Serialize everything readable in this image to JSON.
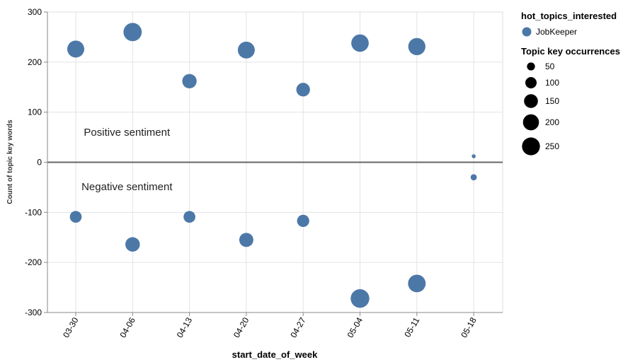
{
  "chart_data": {
    "type": "scatter",
    "xlabel": "start_date_of_week",
    "ylabel": "Count of topic key words",
    "categories": [
      "03-30",
      "04-06",
      "04-13",
      "04-20",
      "04-27",
      "05-04",
      "05-11",
      "05-18"
    ],
    "ylim": [
      -300,
      300
    ],
    "yticks": [
      -300,
      -200,
      -100,
      0,
      100,
      200,
      300
    ],
    "grid": true,
    "series": [
      {
        "name": "JobKeeper",
        "color": "#4c78a8",
        "points": [
          {
            "x": "03-30",
            "y": 226,
            "size": 226
          },
          {
            "x": "04-06",
            "y": 260,
            "size": 260
          },
          {
            "x": "04-13",
            "y": 162,
            "size": 162
          },
          {
            "x": "04-20",
            "y": 224,
            "size": 224
          },
          {
            "x": "04-27",
            "y": 145,
            "size": 145
          },
          {
            "x": "05-04",
            "y": 238,
            "size": 238
          },
          {
            "x": "05-11",
            "y": 231,
            "size": 231
          },
          {
            "x": "05-18",
            "y": 12,
            "size": 12
          },
          {
            "x": "03-30",
            "y": -109,
            "size": 109
          },
          {
            "x": "04-06",
            "y": -164,
            "size": 164
          },
          {
            "x": "04-13",
            "y": -109,
            "size": 109
          },
          {
            "x": "04-20",
            "y": -155,
            "size": 155
          },
          {
            "x": "04-27",
            "y": -117,
            "size": 117
          },
          {
            "x": "05-04",
            "y": -272,
            "size": 272
          },
          {
            "x": "05-11",
            "y": -242,
            "size": 242
          },
          {
            "x": "05-18",
            "y": -30,
            "size": 30
          }
        ]
      }
    ],
    "annotations": [
      {
        "text": "Positive sentiment",
        "x": "04-06",
        "y": 60
      },
      {
        "text": "Negative sentiment",
        "x": "04-06",
        "y": -49
      }
    ],
    "legend": {
      "placement": "right",
      "color_title": "hot_topics_interested",
      "color_entries": [
        "JobKeeper"
      ],
      "size_title": "Topic key occurrences",
      "size_entries": [
        50,
        100,
        150,
        200,
        250
      ]
    }
  }
}
